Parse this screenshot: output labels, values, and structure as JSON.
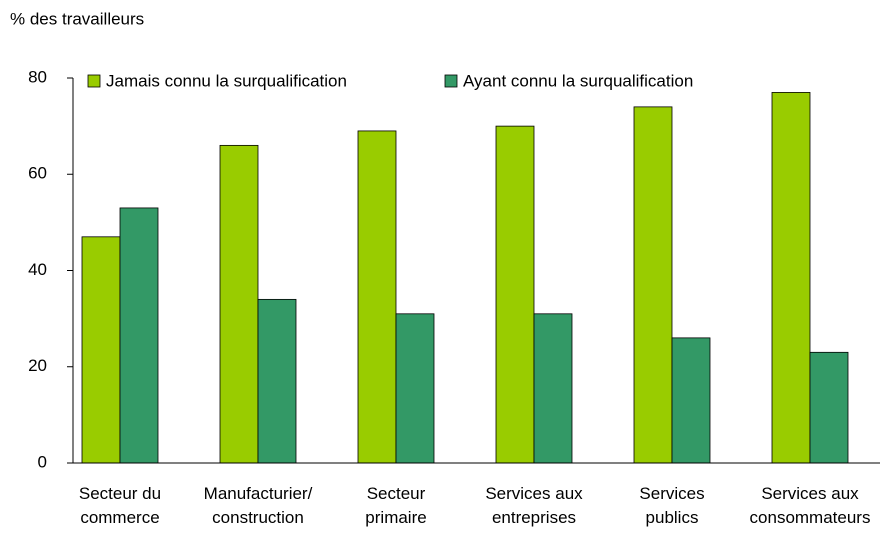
{
  "chart_data": {
    "type": "bar",
    "y_axis_label": "% des travailleurs",
    "categories": [
      "Secteur du\ncommerce",
      "Manufacturier/\nconstruction",
      "Secteur\nprimaire",
      "Services aux\nentreprises",
      "Services\npublics",
      "Services aux\nconsommateurs"
    ],
    "series": [
      {
        "name": "Jamais connu la surqualification",
        "color": "#99cc00",
        "values": [
          47,
          66,
          69,
          70,
          74,
          77
        ]
      },
      {
        "name": "Ayant connu la surqualification",
        "color": "#339966",
        "values": [
          53,
          34,
          31,
          31,
          26,
          23
        ]
      }
    ],
    "ylim": [
      0,
      80
    ],
    "yticks": [
      0,
      20,
      40,
      60,
      80
    ],
    "grid": false,
    "legend": "top"
  }
}
